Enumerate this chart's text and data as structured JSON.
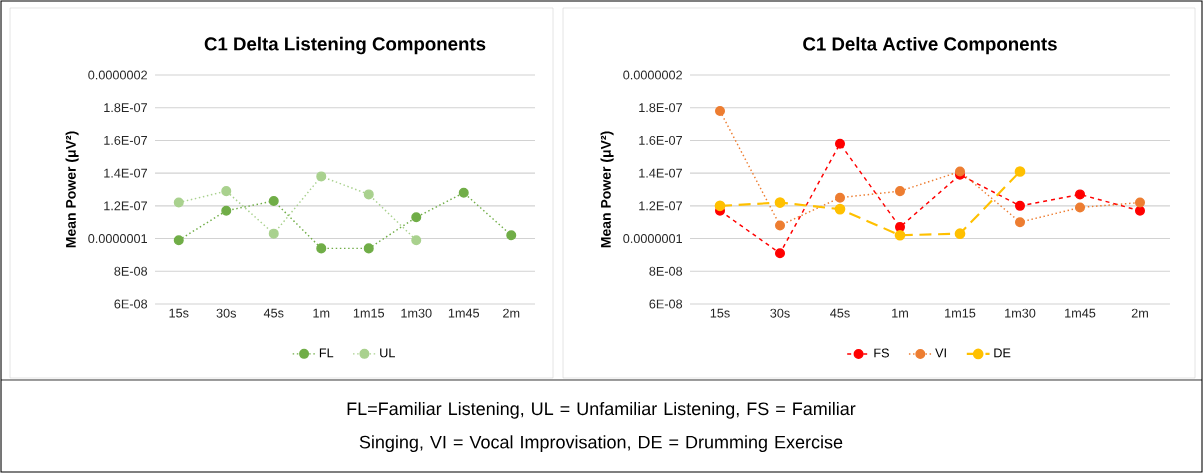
{
  "chart_data": [
    {
      "type": "line",
      "title": "C1 Delta Listening Components",
      "ylabel": "Mean Power (μV²)",
      "categories": [
        "15s",
        "30s",
        "45s",
        "1m",
        "1m15",
        "1m30",
        "1m45",
        "2m"
      ],
      "series": [
        {
          "name": "FL",
          "color": "#70ad47",
          "line_style": "dotted",
          "values": [
            9.9e-08,
            1.17e-07,
            1.23e-07,
            9.4e-08,
            9.4e-08,
            1.13e-07,
            1.28e-07,
            1.02e-07
          ]
        },
        {
          "name": "UL",
          "color": "#a9d18e",
          "line_style": "dotted",
          "values": [
            1.22e-07,
            1.29e-07,
            1.03e-07,
            1.38e-07,
            1.27e-07,
            9.9e-08,
            null,
            null
          ]
        }
      ],
      "ylim": [
        6e-08,
        2e-07
      ],
      "yticks": [
        {
          "value": 6e-08,
          "label": "6E-08"
        },
        {
          "value": 8e-08,
          "label": "8E-08"
        },
        {
          "value": 1e-07,
          "label": "0.0000001"
        },
        {
          "value": 1.2e-07,
          "label": "1.2E-07"
        },
        {
          "value": 1.4e-07,
          "label": "1.4E-07"
        },
        {
          "value": 1.6e-07,
          "label": "1.6E-07"
        },
        {
          "value": 1.8e-07,
          "label": "1.8E-07"
        },
        {
          "value": 2e-07,
          "label": "0.0000002"
        }
      ],
      "grid": "y",
      "legend": "bottom",
      "marker": "circle",
      "annotations": [
        "FL=Familiar Listening, UL = Unfamiliar Listening, FS = Familiar Singing, VI = Vocal Improvisation, DE = Drumming Exercise"
      ]
    },
    {
      "type": "line",
      "title": "C1 Delta Active Components",
      "ylabel": "Mean Power (μV²)",
      "categories": [
        "15s",
        "30s",
        "45s",
        "1m",
        "1m15",
        "1m30",
        "1m45",
        "2m"
      ],
      "series": [
        {
          "name": "FS",
          "color": "#ff0000",
          "line_style": "dashed",
          "values": [
            1.17e-07,
            9.1e-08,
            1.58e-07,
            1.07e-07,
            1.39e-07,
            1.2e-07,
            1.27e-07,
            1.17e-07
          ]
        },
        {
          "name": "VI",
          "color": "#ed7d31",
          "line_style": "dotted",
          "values": [
            1.78e-07,
            1.08e-07,
            1.25e-07,
            1.29e-07,
            1.41e-07,
            1.1e-07,
            1.19e-07,
            1.22e-07
          ]
        },
        {
          "name": "DE",
          "color": "#ffc000",
          "line_style": "dashed",
          "values": [
            1.2e-07,
            1.22e-07,
            1.18e-07,
            1.02e-07,
            1.03e-07,
            1.41e-07,
            null,
            null
          ]
        }
      ],
      "ylim": [
        6e-08,
        2e-07
      ],
      "yticks": [
        {
          "value": 6e-08,
          "label": "6E-08"
        },
        {
          "value": 8e-08,
          "label": "8E-08"
        },
        {
          "value": 1e-07,
          "label": "0.0000001"
        },
        {
          "value": 1.2e-07,
          "label": "1.2E-07"
        },
        {
          "value": 1.4e-07,
          "label": "1.4E-07"
        },
        {
          "value": 1.6e-07,
          "label": "1.6E-07"
        },
        {
          "value": 1.8e-07,
          "label": "1.8E-07"
        },
        {
          "value": 2e-07,
          "label": "0.0000002"
        }
      ],
      "grid": "y",
      "legend": "bottom",
      "marker": "circle"
    }
  ]
}
